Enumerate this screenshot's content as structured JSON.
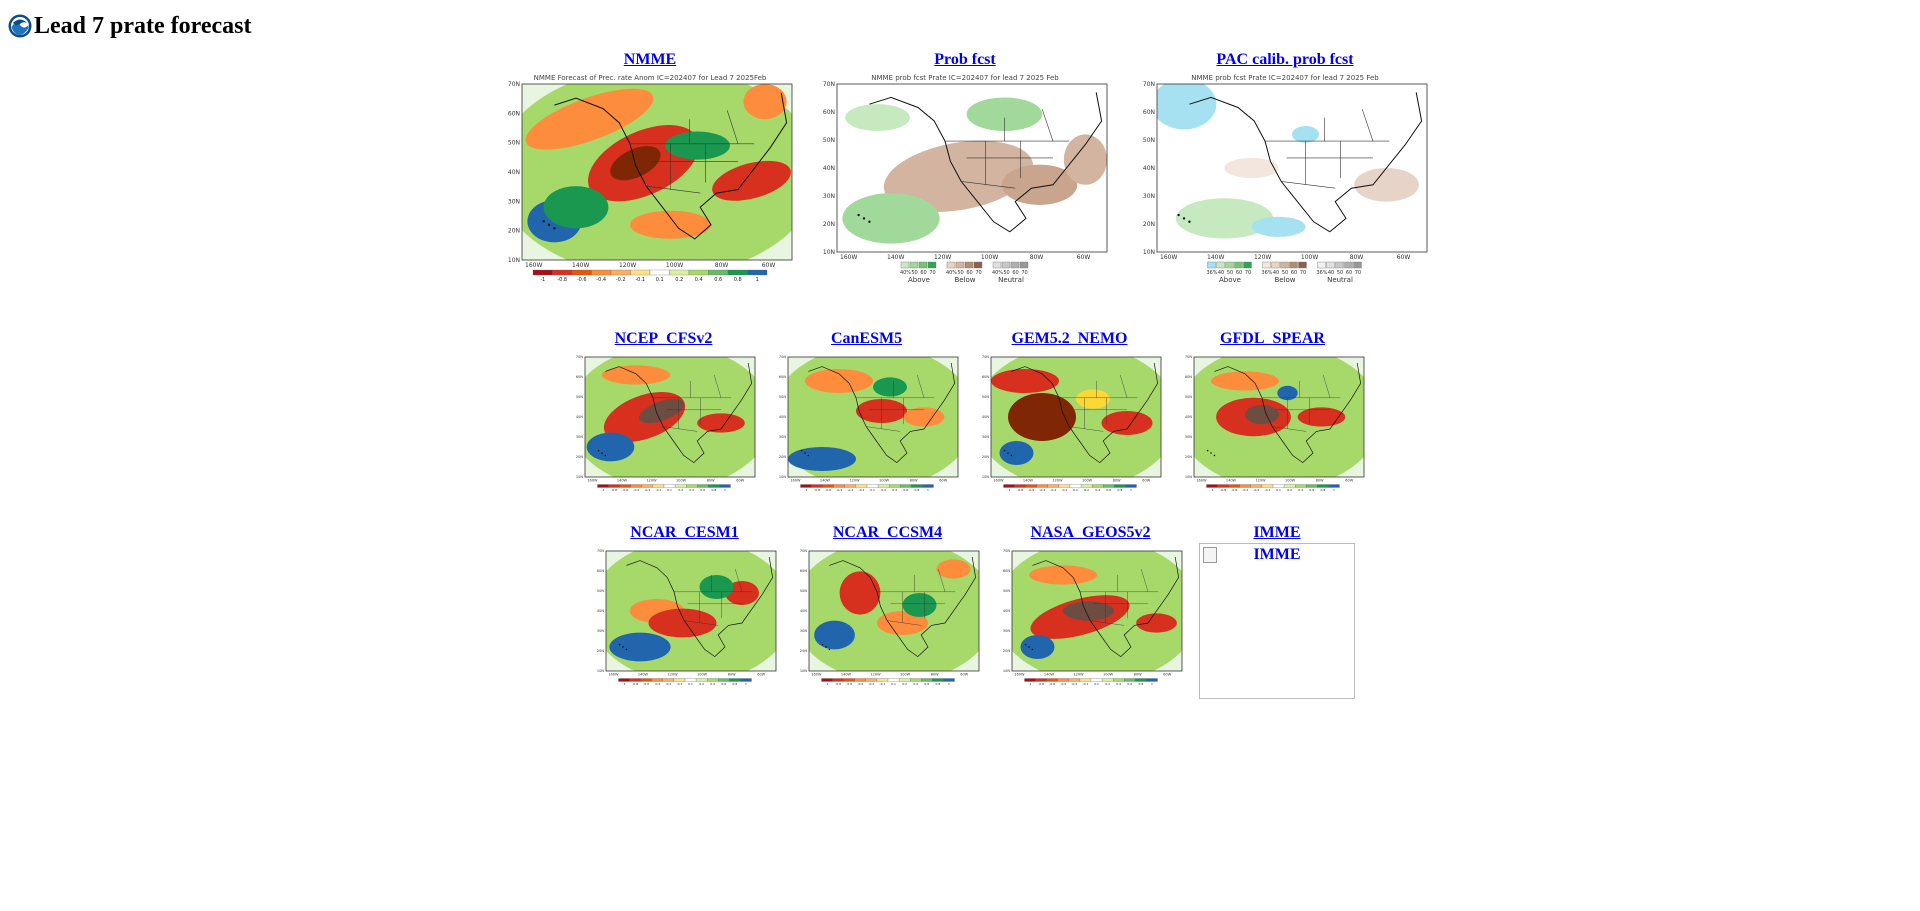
{
  "page": {
    "title": "Lead 7 prate forecast",
    "logo_icon": "noaa-logo-icon"
  },
  "top_row": [
    {
      "label": "NMME",
      "map_title": "NMME Forecast of Prec. rate Anom IC=202407 for Lead 7 2025Feb",
      "type": "anomaly"
    },
    {
      "label": "Prob fcst",
      "map_title": "NMME prob fcst Prate IC=202407 for lead 7 2025 Feb",
      "type": "prob"
    },
    {
      "label": "PAC calib. prob fcst",
      "map_title": "NMME prob fcst Prate IC=202407 for lead 7 2025 Feb",
      "type": "pac"
    }
  ],
  "mid_row": [
    {
      "label": "NCEP_CFSv2"
    },
    {
      "label": "CanESM5"
    },
    {
      "label": "GEM5.2_NEMO"
    },
    {
      "label": "GFDL_SPEAR"
    }
  ],
  "bot_row": [
    {
      "label": "NCAR_CESM1"
    },
    {
      "label": "NCAR_CCSM4"
    },
    {
      "label": "NASA_GEOS5v2"
    },
    {
      "label": "IMME",
      "alt": "IMME"
    }
  ],
  "map_axes": {
    "lat_ticks": [
      "70N",
      "60N",
      "50N",
      "40N",
      "30N",
      "20N",
      "10N"
    ],
    "lon_ticks": [
      "160W",
      "140W",
      "120W",
      "100W",
      "80W",
      "60W"
    ]
  },
  "anomaly_legend": {
    "labels": [
      "-1",
      "-0.8",
      "-0.6",
      "-0.4",
      "-0.2",
      "-0.1",
      "0.1",
      "0.2",
      "0.4",
      "0.6",
      "0.8",
      "1"
    ],
    "colors": [
      "#a50f15",
      "#d7301f",
      "#e6550d",
      "#fd8d3c",
      "#fdae61",
      "#fee08b",
      "#ffffff",
      "#d9f0a3",
      "#a6d96a",
      "#66bd63",
      "#1a9850",
      "#2166ac"
    ]
  },
  "prob_legend": {
    "groups": [
      {
        "name": "Above",
        "numbers": [
          "40%",
          "50",
          "60",
          "70"
        ],
        "colors": [
          "#c7e9c0",
          "#a1d99b",
          "#74c476",
          "#31a354"
        ]
      },
      {
        "name": "Below",
        "numbers": [
          "40%",
          "50",
          "60",
          "70"
        ],
        "colors": [
          "#e7d4c8",
          "#d2b4a0",
          "#b58c74",
          "#8c6150"
        ]
      },
      {
        "name": "Neutral",
        "numbers": [
          "40%",
          "50",
          "60",
          "70"
        ],
        "colors": [
          "#e0e0e0",
          "#c8c8c8",
          "#b0b0b0",
          "#989898"
        ]
      }
    ]
  },
  "pac_legend": {
    "groups": [
      {
        "name": "Above",
        "numbers": [
          "36%",
          "40",
          "50",
          "60",
          "70"
        ],
        "colors": [
          "#a6e1f2",
          "#c7e9c0",
          "#a1d99b",
          "#74c476",
          "#31a354"
        ]
      },
      {
        "name": "Below",
        "numbers": [
          "36%",
          "40",
          "50",
          "60",
          "70"
        ],
        "colors": [
          "#f2e6de",
          "#e7d4c8",
          "#d2b4a0",
          "#b58c74",
          "#8c6150"
        ]
      },
      {
        "name": "Neutral",
        "numbers": [
          "36%",
          "40",
          "50",
          "60",
          "70"
        ],
        "colors": [
          "#f0f0f0",
          "#e0e0e0",
          "#c8c8c8",
          "#b0b0b0",
          "#989898"
        ]
      }
    ]
  }
}
